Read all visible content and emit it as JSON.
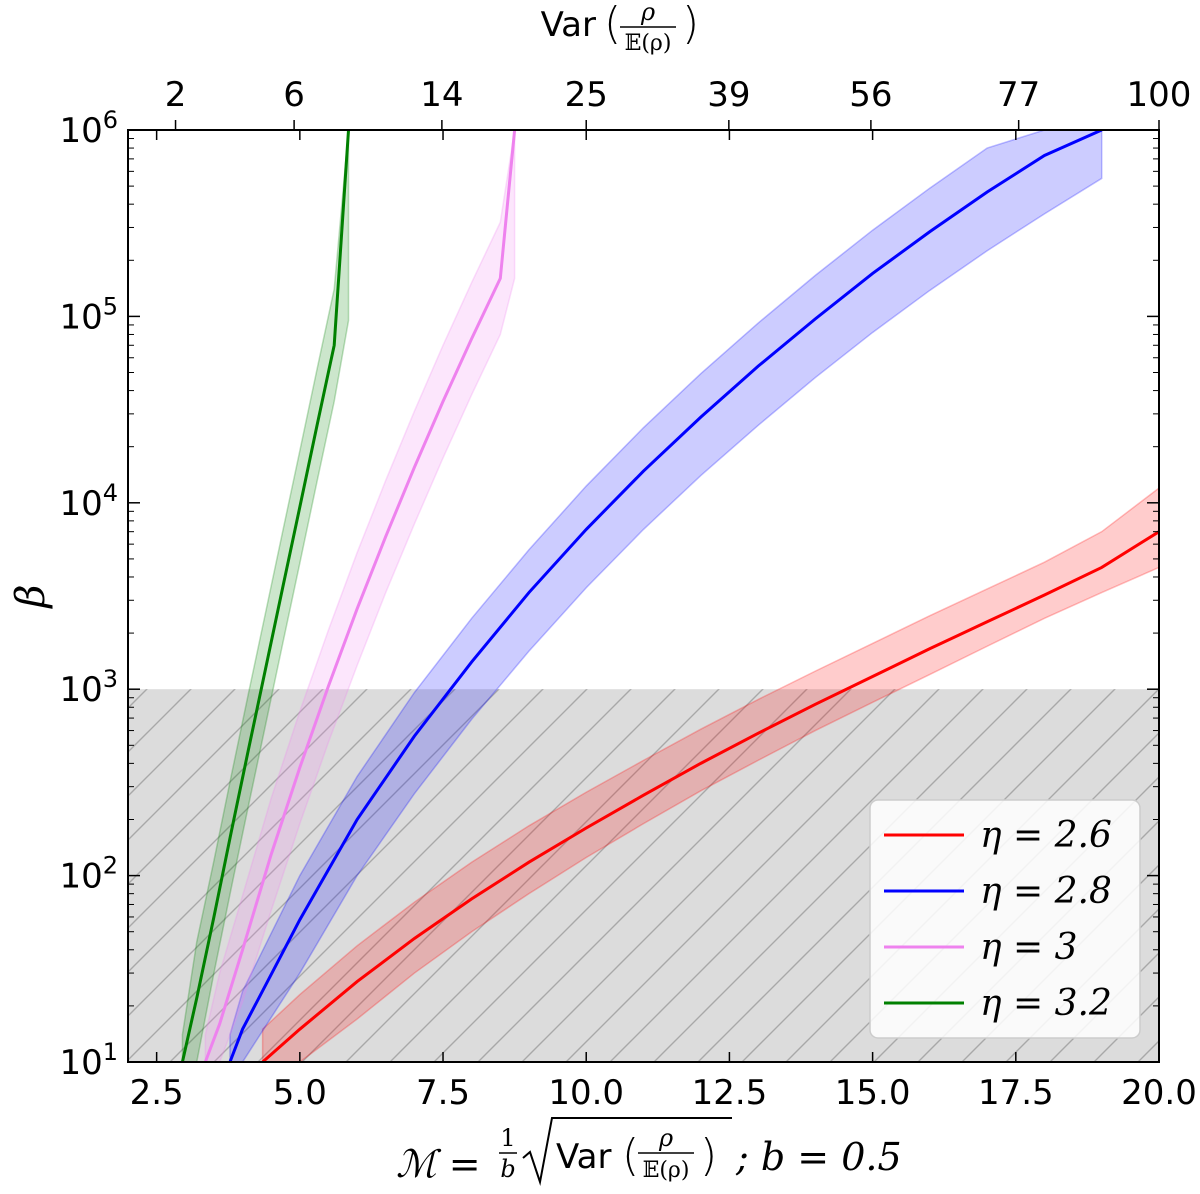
{
  "chart_data": {
    "type": "line",
    "xlabel": "ℳ = (1/b)·√Var(ρ/𝔼(ρ)) ; b = 0.5",
    "xlabel_parts": {
      "prefix": "ℳ =",
      "frac_num": "1",
      "frac_den": "b",
      "var": "Var",
      "rho": "ρ",
      "expect": "𝔼(ρ)",
      "suffix": "; b = 0.5"
    },
    "ylabel": "β",
    "top_xlabel": "Var(ρ/𝔼(ρ))",
    "xlim": [
      2.0,
      20.0
    ],
    "ylim": [
      10,
      1000000
    ],
    "yscale": "log",
    "x_ticks": [
      2.5,
      5.0,
      7.5,
      10.0,
      12.5,
      15.0,
      17.5,
      20.0
    ],
    "x_tick_labels": [
      "2.5",
      "5.0",
      "7.5",
      "10.0",
      "12.5",
      "15.0",
      "17.5",
      "20.0"
    ],
    "y_ticks": [
      10,
      100,
      1000,
      10000,
      100000,
      1000000
    ],
    "y_tick_labels": [
      {
        "base": "10",
        "exp": "1"
      },
      {
        "base": "10",
        "exp": "2"
      },
      {
        "base": "10",
        "exp": "3"
      },
      {
        "base": "10",
        "exp": "4"
      },
      {
        "base": "10",
        "exp": "5"
      },
      {
        "base": "10",
        "exp": "6"
      }
    ],
    "top_ticks": [
      {
        "x": 2.83,
        "label": "2"
      },
      {
        "x": 4.9,
        "label": "6"
      },
      {
        "x": 7.48,
        "label": "14"
      },
      {
        "x": 10.0,
        "label": "25"
      },
      {
        "x": 12.49,
        "label": "39"
      },
      {
        "x": 14.97,
        "label": "56"
      },
      {
        "x": 17.55,
        "label": "77"
      },
      {
        "x": 20.0,
        "label": "100"
      }
    ],
    "shaded_region": {
      "y_range": [
        10,
        1000
      ],
      "color": "#d9d9d9",
      "hatch": "diagonal"
    },
    "legend": {
      "position": "bottom-right"
    },
    "series": [
      {
        "name": "η = 2.6",
        "color": "#ff0000",
        "x": [
          4.35,
          5,
          6,
          7,
          8,
          9,
          10,
          11,
          12,
          13,
          14,
          15,
          16,
          17,
          18,
          19,
          20
        ],
        "y": [
          10,
          15,
          27,
          46,
          75,
          118,
          180,
          270,
          400,
          580,
          830,
          1170,
          1650,
          2300,
          3200,
          4500,
          7000
        ],
        "lower": [
          10,
          10,
          17,
          30,
          50,
          80,
          125,
          190,
          285,
          415,
          600,
          850,
          1200,
          1700,
          2400,
          3300,
          4500
        ],
        "upper": [
          15,
          23,
          42,
          72,
          118,
          185,
          280,
          415,
          610,
          880,
          1250,
          1760,
          2480,
          3450,
          4800,
          7000,
          12000
        ]
      },
      {
        "name": "η = 2.8",
        "color": "#0000ff",
        "x": [
          3.78,
          4,
          5,
          6,
          7,
          8,
          9,
          10,
          11,
          12,
          13,
          14,
          15,
          16,
          17,
          18,
          19
        ],
        "y": [
          10,
          15,
          58,
          200,
          560,
          1400,
          3300,
          7200,
          14800,
          28800,
          54000,
          97000,
          170000,
          285000,
          465000,
          730000,
          1000000
        ],
        "lower": [
          10,
          10,
          30,
          100,
          275,
          690,
          1600,
          3500,
          7200,
          14000,
          26000,
          47000,
          82000,
          138000,
          225000,
          355000,
          550000
        ],
        "upper": [
          14,
          24,
          100,
          340,
          960,
          2400,
          5600,
          12300,
          25300,
          49300,
          92000,
          166000,
          290000,
          488000,
          800000,
          1000000,
          1000000
        ]
      },
      {
        "name": "η = 3",
        "color": "#ee82ee",
        "x": [
          3.35,
          3.6,
          4,
          4.5,
          5,
          5.5,
          6,
          6.5,
          7,
          7.5,
          8,
          8.5,
          8.75
        ],
        "y": [
          10,
          16,
          40,
          130,
          380,
          1040,
          2700,
          6600,
          15500,
          35000,
          76000,
          160000,
          1000000
        ],
        "lower": [
          10,
          10,
          21,
          65,
          190,
          520,
          1340,
          3300,
          7700,
          17400,
          38000,
          80000,
          160000
        ],
        "upper": [
          14,
          30,
          78,
          260,
          760,
          2080,
          5400,
          13200,
          31000,
          70000,
          152000,
          320000,
          1000000
        ]
      },
      {
        "name": "η = 3.2",
        "color": "#008000",
        "x": [
          2.95,
          3.2,
          3.5,
          3.8,
          4.1,
          4.4,
          4.7,
          5.0,
          5.3,
          5.6,
          5.85
        ],
        "y": [
          10,
          22,
          60,
          170,
          470,
          1280,
          3500,
          9500,
          26000,
          70000,
          1000000
        ],
        "lower": [
          10,
          10,
          30,
          85,
          235,
          640,
          1750,
          4750,
          13000,
          35000,
          95000
        ],
        "upper": [
          14,
          44,
          120,
          340,
          940,
          2560,
          7000,
          19000,
          52000,
          140000,
          1000000
        ]
      }
    ]
  }
}
